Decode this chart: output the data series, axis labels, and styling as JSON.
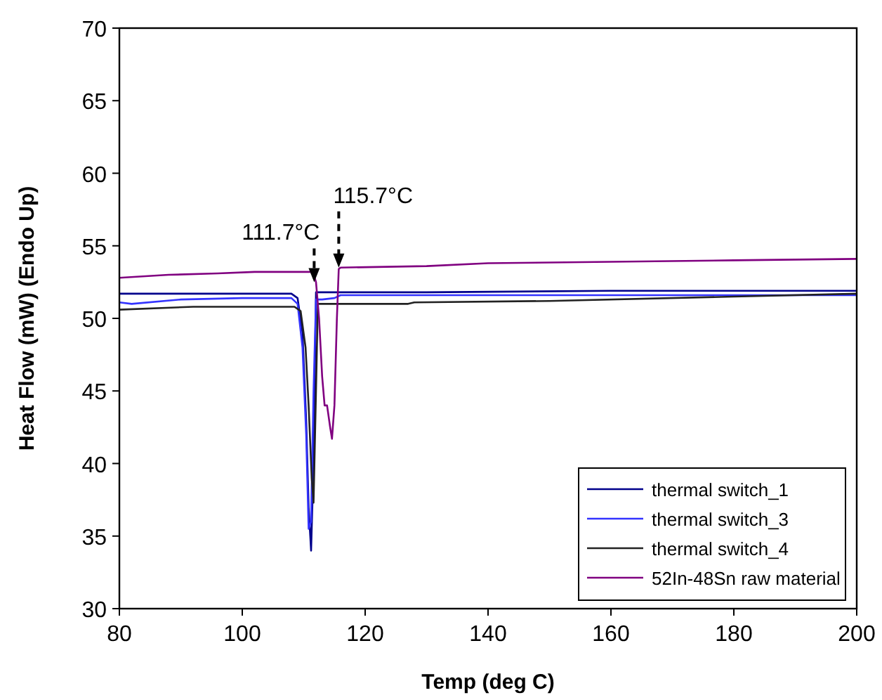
{
  "chart_data": {
    "type": "line",
    "xlabel": "Temp (deg C)",
    "ylabel": "Heat Flow (mW) (Endo Up)",
    "xlim": [
      80,
      200
    ],
    "ylim": [
      30,
      70
    ],
    "xticks": [
      80,
      100,
      120,
      140,
      160,
      180,
      200
    ],
    "yticks": [
      30,
      35,
      40,
      45,
      50,
      55,
      60,
      65,
      70
    ],
    "grid": false,
    "legend": "bottom right",
    "line_style": "solid",
    "series": [
      {
        "name": "thermal switch_1",
        "color": "#00008b",
        "x": [
          80,
          100,
          108,
          109,
          109.8,
          110.4,
          110.8,
          111.2,
          111.6,
          112,
          113,
          130,
          160,
          200
        ],
        "values": [
          51.7,
          51.7,
          51.7,
          51.4,
          49,
          43,
          37,
          34,
          40,
          51.8,
          51.8,
          51.8,
          51.9,
          51.9
        ]
      },
      {
        "name": "thermal switch_3",
        "color": "#3333ff",
        "x": [
          80,
          82,
          90,
          100,
          108,
          109,
          109.8,
          110.4,
          110.8,
          111.2,
          111.6,
          112,
          113,
          115,
          116,
          125,
          160,
          200
        ],
        "values": [
          51.1,
          51.0,
          51.3,
          51.4,
          51.4,
          51.0,
          48,
          42,
          35.5,
          36,
          45,
          51.3,
          51.3,
          51.4,
          51.6,
          51.6,
          51.6,
          51.6
        ]
      },
      {
        "name": "thermal switch_4",
        "color": "#222222",
        "x": [
          80,
          92,
          108.5,
          109.5,
          110.3,
          110.8,
          111.3,
          111.6,
          112,
          112.3,
          127,
          128,
          150,
          180,
          200
        ],
        "values": [
          50.6,
          50.8,
          50.8,
          50.5,
          48,
          44,
          39,
          37.3,
          45,
          51.0,
          51.0,
          51.1,
          51.2,
          51.5,
          51.7
        ],
        "line_style": "solid"
      },
      {
        "name": "52In-48Sn raw material",
        "color": "#800080",
        "x": [
          80,
          88,
          96,
          102,
          111.5,
          112,
          112.5,
          113,
          113.4,
          113.8,
          114.3,
          114.6,
          115,
          115.4,
          115.7,
          116,
          130,
          140,
          160,
          180,
          200
        ],
        "values": [
          52.8,
          53.0,
          53.1,
          53.2,
          53.2,
          52.5,
          50,
          46,
          44,
          44,
          42.5,
          41.7,
          44,
          50,
          53.4,
          53.5,
          53.6,
          53.8,
          53.9,
          54.0,
          54.1
        ]
      }
    ],
    "annotations": [
      {
        "text": "111.7°C",
        "x": 111.7,
        "y": 52.5
      },
      {
        "text": "115.7°C",
        "x": 115.7,
        "y": 53.5
      }
    ],
    "marker": "none"
  }
}
